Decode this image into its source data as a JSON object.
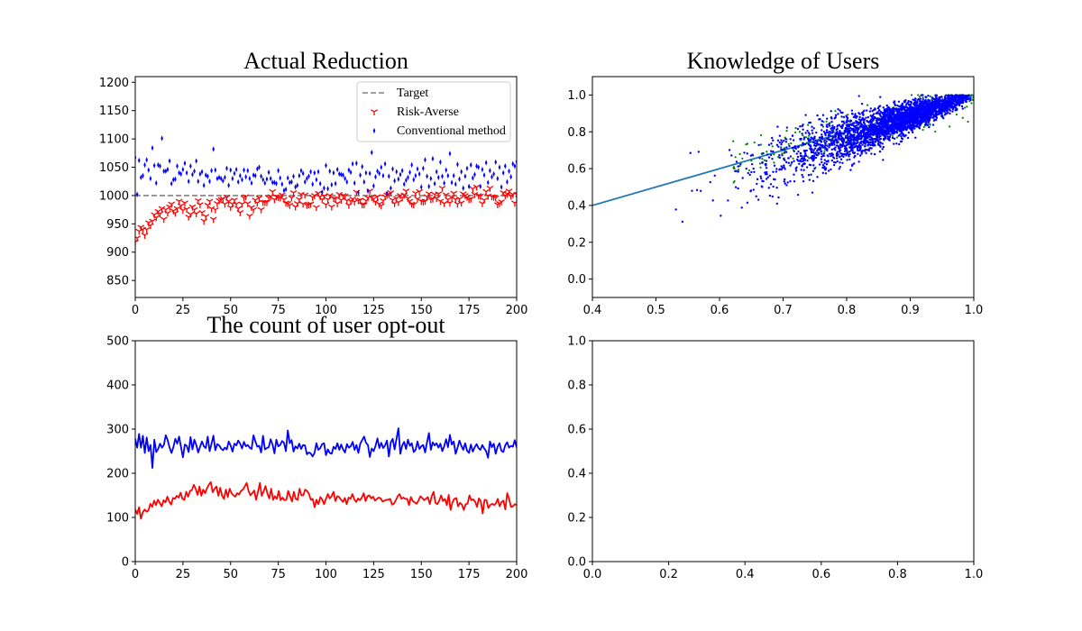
{
  "figure": {
    "background": "#ffffff"
  },
  "chart_data": [
    {
      "type": "scatter",
      "title": "Actual Reduction",
      "xlim": [
        0,
        200
      ],
      "ylim": [
        820,
        1210
      ],
      "xticks": [
        0,
        25,
        50,
        75,
        100,
        125,
        150,
        175,
        200
      ],
      "yticks": [
        850,
        900,
        950,
        1000,
        1050,
        1100,
        1150,
        1200
      ],
      "grid": false,
      "legend_position": "top-right",
      "target": {
        "name": "Target",
        "value": 1000,
        "color": "#808080",
        "style": "dashed"
      },
      "series": [
        {
          "name": "Risk-Averse",
          "color": "#ff0000",
          "marker": "tri_down",
          "values": [
            918,
            925,
            937,
            944,
            940,
            930,
            940,
            952,
            947,
            955,
            966,
            961,
            972,
            968,
            977,
            958,
            975,
            969,
            980,
            985,
            973,
            969,
            977,
            990,
            982,
            974,
            987,
            976,
            962,
            967,
            980,
            975,
            968,
            991,
            984,
            970,
            955,
            963,
            983,
            990,
            977,
            958,
            975,
            986,
            991,
            993,
            994,
            985,
            997,
            990,
            979,
            985,
            992,
            985,
            977,
            970,
            985,
            996,
            998,
            986,
            964,
            979,
            975,
            992,
            987,
            996,
            975,
            988,
            988,
            988,
            996,
            998,
            1007,
            993,
            998,
            997,
            996,
            1001,
            993,
            987,
            986,
            983,
            996,
            1005,
            980,
            986,
            993,
            1002,
            985,
            1001,
            983,
            984,
            985,
            997,
            1000,
            979,
            1004,
            998,
            993,
            999,
            984,
            993,
            1000,
            980,
            995,
            994,
            986,
            1002,
            992,
            1000,
            999,
            991,
            983,
            990,
            994,
            989,
            1006,
            991,
            992,
            984,
            984,
            991,
            996,
            1008,
            997,
            994,
            989,
            998,
            985,
            982,
            991,
            998,
            1001,
            1002,
            1005,
            992,
            986,
            995,
            988,
            1000,
            996,
            1001,
            1008,
            995,
            990,
            985,
            984,
            1004,
            994,
            1007,
            990,
            989,
            990,
            998,
            1003,
            993,
            994,
            1002,
            995,
            1003,
            990,
            1013,
            986,
            1001,
            993,
            987,
            997,
            1004,
            993,
            985,
            994,
            987,
            1003,
            1000,
            997,
            993,
            994,
            1012,
            1002,
            1015,
            1000,
            999,
            986,
            992,
            1007,
            999,
            1013,
            998,
            997,
            996,
            984,
            986,
            989,
            1005,
            1000,
            1003,
            1008,
            999,
            1002,
            987,
            1002,
            996,
            1002,
            1011,
            1001,
            990
          ]
        },
        {
          "name": "Conventional method",
          "color": "#0000ff",
          "marker": "thin_diamond",
          "values": [
            1067,
            1002,
            1062,
            1032,
            1035,
            1054,
            1063,
            1045,
            1030,
            1084,
            1053,
            1022,
            1054,
            1052,
            1101,
            1043,
            1043,
            1046,
            1061,
            1021,
            1028,
            1029,
            1052,
            1040,
            1038,
            1046,
            1057,
            1040,
            1025,
            1052,
            1037,
            1043,
            1061,
            1025,
            1038,
            1042,
            1018,
            1036,
            1034,
            1025,
            1044,
            1082,
            1045,
            1030,
            1032,
            1030,
            1026,
            1032,
            1048,
            1018,
            1045,
            1030,
            1039,
            1046,
            1024,
            1035,
            1028,
            1045,
            1033,
            1044,
            1030,
            1022,
            1036,
            1035,
            1047,
            1050,
            1034,
            1028,
            1022,
            1029,
            1041,
            1030,
            1023,
            1023,
            1021,
            1044,
            1031,
            1020,
            1009,
            1011,
            1031,
            1023,
            1024,
            1034,
            1015,
            1018,
            1035,
            1044,
            1039,
            1024,
            1030,
            1034,
            1042,
            1020,
            1040,
            1028,
            1042,
            1021,
            1006,
            1013,
            1053,
            1012,
            1043,
            1019,
            1040,
            1021,
            1046,
            1038,
            1037,
            1036,
            1030,
            1024,
            1045,
            1041,
            1056,
            1022,
            1057,
            1005,
            1036,
            1051,
            1024,
            1040,
            1008,
            1039,
            1076,
            1017,
            1033,
            1043,
            1039,
            1050,
            1035,
            1056,
            1004,
            1034,
            1013,
            1047,
            1026,
            1042,
            1029,
            1037,
            1044,
            1020,
            1027,
            1032,
            1041,
            1054,
            1028,
            1035,
            1047,
            1038,
            1015,
            1048,
            1063,
            1034,
            1016,
            1030,
            1065,
            1021,
            1042,
            1032,
            1059,
            1034,
            1022,
            1045,
            1035,
            1074,
            1023,
            1035,
            1020,
            1055,
            1029,
            1042,
            1013,
            1034,
            1048,
            1016,
            1054,
            1031,
            1037,
            1052,
            1050,
            1016,
            1046,
            1036,
            1058,
            1023,
            1044,
            1033,
            1038,
            1059,
            1030,
            1050,
            1015,
            1040,
            1052,
            1024,
            1043,
            1033,
            1056,
            1052,
            1060
          ]
        }
      ]
    },
    {
      "type": "scatter",
      "title": "Knowledge of Users",
      "xlim": [
        0.4,
        1.0
      ],
      "ylim": [
        -0.1,
        1.1
      ],
      "xticks": [
        0.4,
        0.5,
        0.6,
        0.7,
        0.8,
        0.9,
        1.0
      ],
      "yticks": [
        0.0,
        0.2,
        0.4,
        0.6,
        0.8,
        1.0
      ],
      "grid": false,
      "series": [
        {
          "color": "#0000ff",
          "marker": "point",
          "count": 3000,
          "x_range": [
            0.42,
            1.0
          ],
          "y_range": [
            0.3,
            1.0
          ]
        },
        {
          "color": "#008000",
          "marker": "point",
          "count": 200,
          "x_range": [
            0.6,
            1.0
          ],
          "y_range": [
            0.4,
            1.0
          ]
        }
      ],
      "fit_line": {
        "color": "#1f77b4",
        "x": [
          0.4,
          1.0
        ],
        "y": [
          0.4,
          1.0
        ]
      }
    },
    {
      "type": "line",
      "title": "The count of user opt-out",
      "xlim": [
        0,
        200
      ],
      "ylim": [
        0,
        500
      ],
      "xticks": [
        0,
        25,
        50,
        75,
        100,
        125,
        150,
        175,
        200
      ],
      "yticks": [
        0,
        100,
        200,
        300,
        400,
        500
      ],
      "grid": false,
      "series": [
        {
          "color": "#0000ff",
          "values": [
            278,
            258,
            289,
            258,
            285,
            246,
            281,
            250,
            264,
            212,
            276,
            248,
            255,
            267,
            258,
            264,
            286,
            275,
            258,
            246,
            259,
            278,
            267,
            283,
            259,
            236,
            265,
            262,
            248,
            282,
            254,
            276,
            264,
            247,
            260,
            272,
            261,
            257,
            283,
            250,
            267,
            285,
            252,
            266,
            263,
            256,
            252,
            258,
            254,
            272,
            263,
            249,
            267,
            263,
            274,
            267,
            256,
            271,
            261,
            264,
            258,
            255,
            286,
            272,
            260,
            262,
            247,
            285,
            254,
            257,
            259,
            277,
            265,
            245,
            276,
            261,
            264,
            273,
            269,
            250,
            297,
            268,
            275,
            249,
            261,
            256,
            267,
            255,
            264,
            263,
            243,
            247,
            245,
            238,
            246,
            268,
            253,
            257,
            266,
            268,
            241,
            254,
            246,
            244,
            260,
            255,
            268,
            253,
            265,
            254,
            247,
            266,
            258,
            261,
            271,
            253,
            264,
            246,
            267,
            275,
            283,
            269,
            264,
            237,
            256,
            250,
            262,
            279,
            257,
            269,
            257,
            263,
            274,
            238,
            270,
            278,
            254,
            278,
            302,
            244,
            263,
            271,
            255,
            276,
            262,
            268,
            248,
            253,
            272,
            255,
            261,
            264,
            247,
            270,
            291,
            253,
            270,
            263,
            268,
            258,
            267,
            250,
            261,
            277,
            259,
            287,
            265,
            272,
            244,
            258,
            274,
            262,
            253,
            268,
            251,
            246,
            265,
            249,
            259,
            266,
            257,
            253,
            264,
            256,
            250,
            235,
            272,
            259,
            267,
            244,
            260,
            268,
            251,
            248,
            263,
            270,
            258,
            262,
            260,
            275,
            258
          ]
        },
        {
          "color": "#ff0000",
          "values": [
            118,
            108,
            123,
            97,
            112,
            118,
            113,
            116,
            131,
            124,
            138,
            128,
            140,
            133,
            125,
            139,
            134,
            147,
            136,
            129,
            144,
            142,
            149,
            145,
            156,
            142,
            140,
            158,
            147,
            160,
            162,
            174,
            165,
            151,
            170,
            149,
            163,
            155,
            166,
            174,
            180,
            157,
            165,
            170,
            149,
            167,
            149,
            142,
            163,
            146,
            165,
            155,
            150,
            147,
            155,
            152,
            160,
            163,
            170,
            178,
            160,
            150,
            155,
            161,
            140,
            158,
            178,
            149,
            159,
            171,
            154,
            143,
            165,
            140,
            148,
            142,
            160,
            139,
            145,
            139,
            140,
            160,
            148,
            136,
            158,
            142,
            140,
            165,
            150,
            150,
            163,
            160,
            153,
            140,
            142,
            123,
            140,
            130,
            146,
            141,
            130,
            142,
            153,
            143,
            148,
            158,
            137,
            148,
            146,
            140,
            135,
            144,
            130,
            145,
            142,
            153,
            141,
            135,
            143,
            139,
            145,
            155,
            137,
            148,
            150,
            143,
            147,
            138,
            142,
            145,
            143,
            136,
            138,
            140,
            140,
            142,
            129,
            131,
            139,
            148,
            153,
            142,
            145,
            142,
            142,
            128,
            146,
            137,
            134,
            131,
            138,
            148,
            144,
            139,
            142,
            146,
            130,
            148,
            158,
            133,
            130,
            138,
            150,
            137,
            142,
            128,
            151,
            117,
            134,
            142,
            144,
            125,
            133,
            129,
            117,
            130,
            131,
            150,
            139,
            141,
            136,
            124,
            143,
            137,
            109,
            140,
            139,
            121,
            128,
            131,
            128,
            132,
            142,
            125,
            135,
            138,
            118,
            155,
            142,
            124,
            125,
            130,
            128
          ]
        }
      ]
    },
    {
      "type": "line",
      "title": "",
      "xlim": [
        0.0,
        1.0
      ],
      "ylim": [
        0.0,
        1.0
      ],
      "xticks": [
        0.0,
        0.2,
        0.4,
        0.6,
        0.8,
        1.0
      ],
      "yticks": [
        0.0,
        0.2,
        0.4,
        0.6,
        0.8,
        1.0
      ],
      "grid": false,
      "series": []
    }
  ]
}
